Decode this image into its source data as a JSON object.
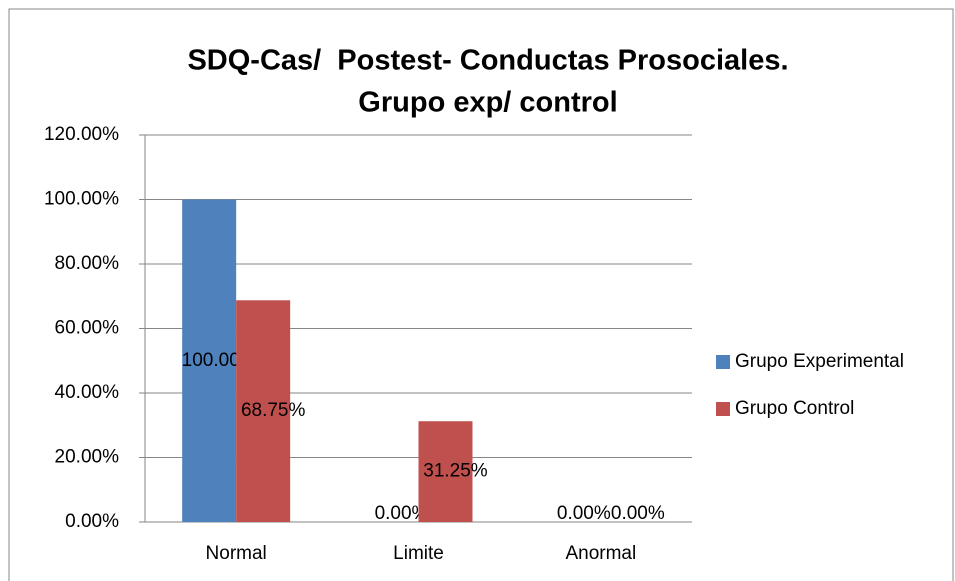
{
  "chart_data": {
    "type": "bar",
    "title": [
      "SDQ-Cas/  Postest- Conductas Prosociales.",
      "Grupo exp/ control"
    ],
    "categories": [
      "Normal",
      "Limite",
      "Anormal"
    ],
    "series": [
      {
        "name": "Grupo Experimental",
        "color": "#4f81bd",
        "values": [
          100,
          0,
          0
        ],
        "value_labels": [
          "100.00%",
          "0.00%",
          "0.00%"
        ]
      },
      {
        "name": "Grupo Control",
        "color": "#c0504d",
        "values": [
          68.75,
          31.25,
          0
        ],
        "value_labels": [
          "68.75%",
          "31.25%",
          "0.00%"
        ]
      }
    ],
    "ylim": [
      0,
      120
    ],
    "yticks": [
      {
        "value": 0,
        "label": "0.00%"
      },
      {
        "value": 20,
        "label": "20.00%"
      },
      {
        "value": 40,
        "label": "40.00%"
      },
      {
        "value": 60,
        "label": "60.00%"
      },
      {
        "value": 80,
        "label": "80.00%"
      },
      {
        "value": 100,
        "label": "100.00%"
      },
      {
        "value": 120,
        "label": "120.00%"
      }
    ],
    "grid": true,
    "legend": "right"
  }
}
